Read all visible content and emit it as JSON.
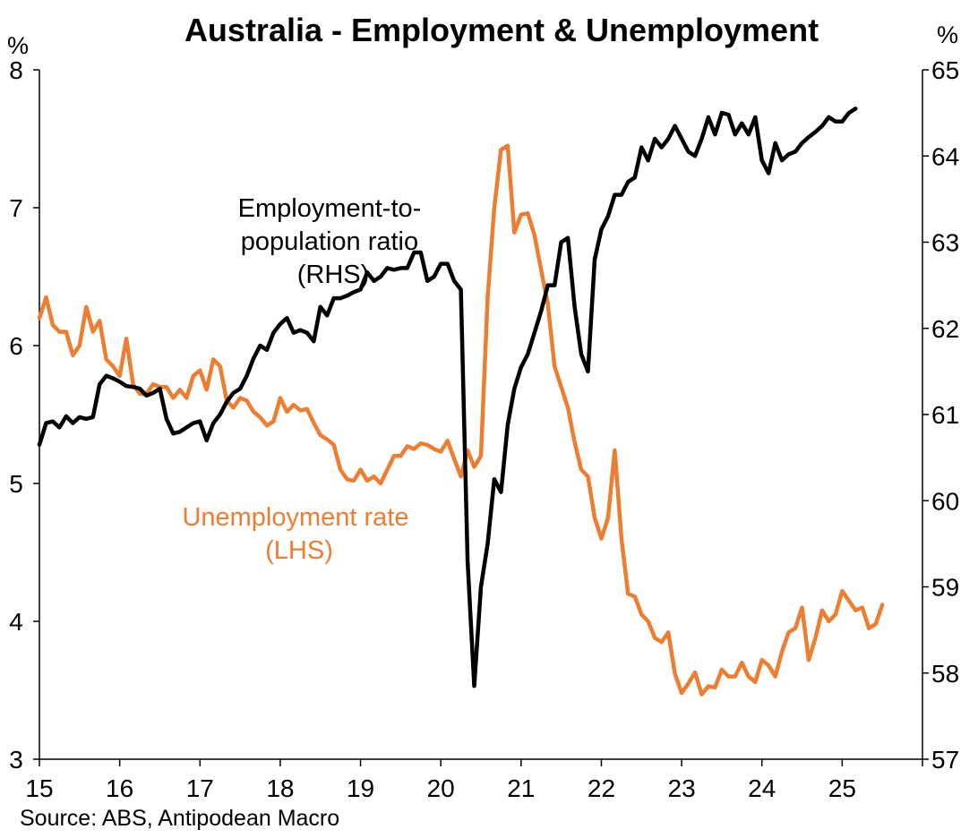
{
  "chart_data": {
    "type": "line",
    "title": "Australia - Employment & Unemployment",
    "left_axis": {
      "unit": "%",
      "ylim": [
        3,
        8
      ],
      "ticks": [
        "3",
        "4",
        "5",
        "6",
        "7",
        "8"
      ]
    },
    "right_axis": {
      "unit": "%",
      "ylim": [
        57,
        65
      ],
      "ticks": [
        "57",
        "58",
        "59",
        "60",
        "61",
        "62",
        "63",
        "64",
        "65"
      ]
    },
    "x_axis": {
      "xlim": [
        2015,
        2026
      ],
      "ticks": [
        "15",
        "16",
        "17",
        "18",
        "19",
        "20",
        "21",
        "22",
        "23",
        "24",
        "25"
      ]
    },
    "grid": false,
    "annotations": {
      "employment": [
        "Employment-to-",
        "population ratio",
        "(RHS)"
      ],
      "unemployment": [
        "Unemployment rate",
        "(LHS)"
      ]
    },
    "source": "Source: ABS, Antipodean Macro",
    "colors": {
      "employment": "#000000",
      "unemployment": "#ED7D31"
    },
    "series": [
      {
        "key": "unemployment",
        "axis": "left",
        "x_start": 2015.0,
        "step_months": 1,
        "values": [
          6.2,
          6.35,
          6.15,
          6.1,
          6.1,
          5.93,
          6.0,
          6.28,
          6.1,
          6.18,
          5.9,
          5.85,
          5.78,
          6.05,
          5.72,
          5.65,
          5.65,
          5.72,
          5.7,
          5.7,
          5.62,
          5.68,
          5.62,
          5.78,
          5.82,
          5.68,
          5.9,
          5.85,
          5.6,
          5.55,
          5.62,
          5.6,
          5.52,
          5.48,
          5.42,
          5.45,
          5.62,
          5.52,
          5.57,
          5.53,
          5.54,
          5.44,
          5.35,
          5.32,
          5.28,
          5.1,
          5.03,
          5.02,
          5.1,
          5.02,
          5.05,
          5.0,
          5.1,
          5.2,
          5.2,
          5.27,
          5.25,
          5.29,
          5.28,
          5.25,
          5.23,
          5.31,
          5.18,
          5.05,
          5.24,
          5.12,
          5.2,
          6.35,
          7.0,
          7.42,
          7.45,
          6.82,
          6.95,
          6.96,
          6.8,
          6.55,
          6.3,
          5.85,
          5.7,
          5.55,
          5.3,
          5.1,
          5.05,
          4.75,
          4.6,
          4.75,
          5.24,
          4.6,
          4.2,
          4.18,
          4.05,
          4.0,
          3.88,
          3.85,
          3.92,
          3.62,
          3.48,
          3.55,
          3.63,
          3.47,
          3.53,
          3.52,
          3.65,
          3.6,
          3.6,
          3.7,
          3.6,
          3.56,
          3.72,
          3.68,
          3.6,
          3.78,
          3.92,
          3.95,
          4.1,
          3.72,
          3.88,
          4.08,
          4.0,
          4.05,
          4.22,
          4.15,
          4.08,
          4.1,
          3.95,
          3.98,
          4.12
        ]
      },
      {
        "key": "employment",
        "axis": "right",
        "x_start": 2015.0,
        "step_months": 1,
        "values": [
          60.65,
          60.9,
          60.92,
          60.85,
          60.98,
          60.9,
          60.97,
          60.95,
          60.97,
          61.35,
          61.45,
          61.42,
          61.38,
          61.33,
          61.32,
          61.3,
          61.22,
          61.25,
          61.3,
          60.95,
          60.78,
          60.8,
          60.85,
          60.9,
          60.92,
          60.7,
          60.9,
          61.0,
          61.15,
          61.25,
          61.3,
          61.45,
          61.65,
          61.8,
          61.75,
          61.95,
          62.05,
          62.12,
          61.95,
          61.98,
          61.95,
          61.85,
          62.25,
          62.15,
          62.35,
          62.35,
          62.38,
          62.42,
          62.45,
          62.65,
          62.55,
          62.6,
          62.7,
          62.68,
          62.7,
          62.7,
          62.88,
          62.88,
          62.55,
          62.6,
          62.75,
          62.75,
          62.55,
          62.45,
          59.3,
          57.85,
          59.0,
          59.5,
          60.25,
          60.1,
          60.88,
          61.3,
          61.55,
          61.7,
          61.95,
          62.2,
          62.5,
          62.5,
          63.0,
          63.05,
          62.25,
          61.7,
          61.5,
          62.8,
          63.15,
          63.3,
          63.55,
          63.55,
          63.7,
          63.75,
          64.1,
          63.95,
          64.2,
          64.1,
          64.2,
          64.35,
          64.2,
          64.05,
          64.0,
          64.2,
          64.45,
          64.25,
          64.5,
          64.48,
          64.25,
          64.38,
          64.25,
          64.45,
          63.95,
          63.8,
          64.15,
          63.95,
          64.02,
          64.05,
          64.15,
          64.22,
          64.28,
          64.35,
          64.45,
          64.4,
          64.4,
          64.5,
          64.55
        ]
      }
    ]
  }
}
